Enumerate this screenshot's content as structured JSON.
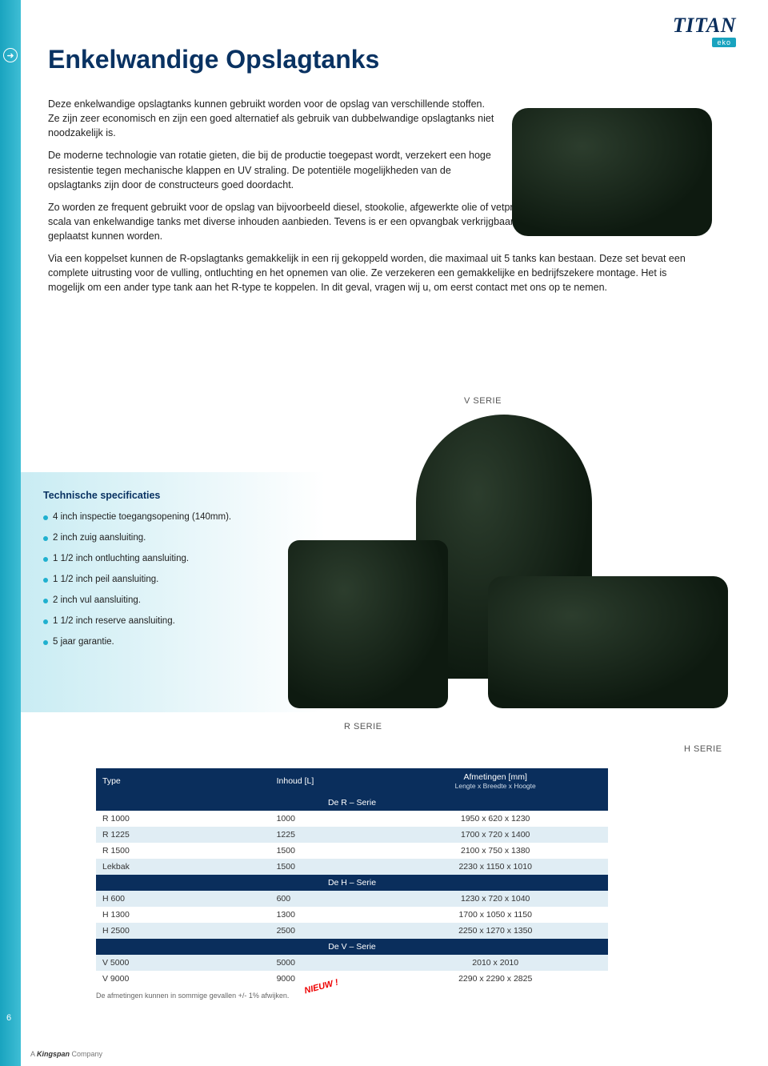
{
  "logo": {
    "brand": "TITAN",
    "sub": "eko"
  },
  "title": "Enkelwandige Opslagtanks",
  "paragraphs": {
    "p1": "Deze enkelwandige opslagtanks kunnen gebruikt worden voor de opslag van verschillende stoffen. Ze zijn zeer economisch en zijn een goed alternatief als gebruik van dubbelwandige opslagtanks niet noodzakelijk is.",
    "p2": "De moderne technologie van rotatie gieten, die bij de productie toegepast wordt, verzekert een hoge resistentie tegen mechanische klappen en UV straling. De potentiële mogelijkheden van de opslagtanks zijn door de constructeurs goed doordacht.",
    "p3a": "Zo worden ze frequent gebruikt voor de opslag van bijvoorbeeld diesel, stookolie, afgewerkte olie of vetproducten. ",
    "p3brand": "Titan Eko",
    "p3b": " kan u een breed scala van enkelwandige tanks met diverse inhouden aanbieden. Tevens is er een opvangbak verkrijgbaar, waarin sommige enkelwandige tanks geplaatst kunnen worden.",
    "p4": "Via een koppelset kunnen de R-opslagtanks gemakkelijk in een rij gekoppeld worden, die maximaal uit 5 tanks kan bestaan. Deze set bevat een complete uitrusting voor de vulling, ontluchting en het opnemen van olie. Ze verzekeren een gemakkelijke en bedrijfszekere montage. Het is mogelijk om een ander type tank aan het R-type te koppelen. In dit geval, vragen wij u, om eerst contact met ons op te nemen."
  },
  "series_labels": {
    "v": "V SERIE",
    "r": "R SERIE",
    "h": "H SERIE"
  },
  "specs": {
    "title": "Technische specificaties",
    "items": [
      "4 inch inspectie toegangsopening (140mm).",
      "2 inch zuig aansluiting.",
      "1 1/2 inch ontluchting aansluiting.",
      "1 1/2 inch peil aansluiting.",
      "2 inch vul aansluiting.",
      "1 1/2 inch reserve aansluiting.",
      "5 jaar garantie."
    ]
  },
  "table": {
    "header": {
      "type": "Type",
      "inhoud": "Inhoud [L]",
      "dim_top": "Afmetingen [mm]",
      "dim_sub": "Lengte x Breedte x Hoogte"
    },
    "sections": [
      {
        "title": "De R – Serie",
        "rows": [
          {
            "type": "R 1000",
            "inhoud": "1000",
            "dim": "1950 x 620 x 1230"
          },
          {
            "type": "R 1225",
            "inhoud": "1225",
            "dim": "1700 x 720 x 1400"
          },
          {
            "type": "R 1500",
            "inhoud": "1500",
            "dim": "2100 x 750 x 1380"
          },
          {
            "type": "Lekbak",
            "inhoud": "1500",
            "dim": "2230 x 1150 x 1010"
          }
        ]
      },
      {
        "title": "De H – Serie",
        "rows": [
          {
            "type": "H 600",
            "inhoud": "600",
            "dim": "1230 x 720 x 1040"
          },
          {
            "type": "H 1300",
            "inhoud": "1300",
            "dim": "1700 x 1050 x 1150"
          },
          {
            "type": "H 2500",
            "inhoud": "2500",
            "dim": "2250 x 1270 x 1350"
          }
        ]
      },
      {
        "title": "De V – Serie",
        "rows": [
          {
            "type": "V 5000",
            "inhoud": "5000",
            "dim": "2010 x 2010"
          },
          {
            "type": "V 9000",
            "inhoud": "9000",
            "dim": "2290 x 2290 x 2825"
          }
        ]
      }
    ],
    "footnote": "De afmetingen kunnen in sommige gevallen +/- 1% afwijken.",
    "nieuw": "NIEUW !"
  },
  "page_number": "6",
  "footer": {
    "prefix": "A ",
    "brand": "Kingspan",
    "suffix": " Company"
  },
  "colors": {
    "primary_navy": "#0a2e5c",
    "accent_cyan": "#19a3bf",
    "row_alt": "#e0edf4"
  }
}
